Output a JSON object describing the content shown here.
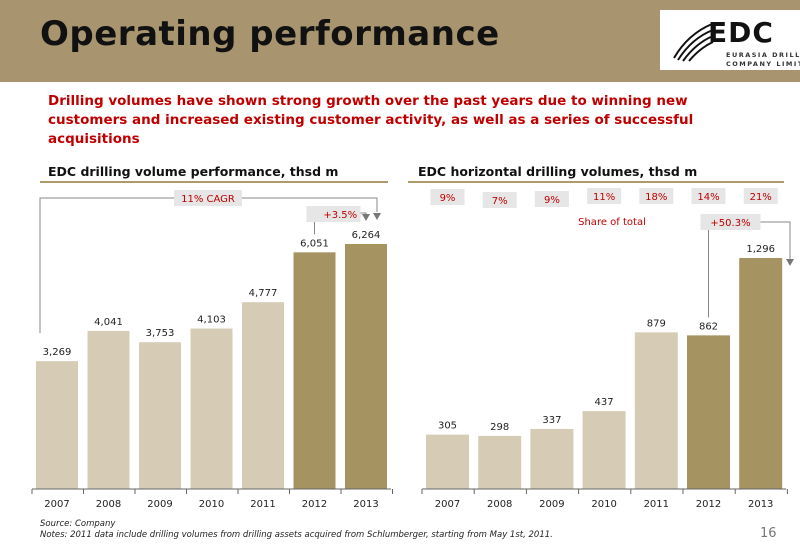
{
  "header": {
    "title": "Operating performance",
    "logo": {
      "name": "EDC",
      "line1": "EURASIA DRILLING",
      "line2": "COMPANY LIMITED",
      "icon": "swoosh-logo-icon"
    }
  },
  "subtitle": "Drilling volumes have shown strong growth over the past years due to winning new customers and increased existing customer activity, as well as a series of successful acquisitions",
  "colors": {
    "header_bg": "#a89570",
    "bar_light": "#d6ccb5",
    "bar_dark": "#a59361",
    "accent_red": "#c00000",
    "badge_bg": "#e6e6e6",
    "rule": "#b09a6c"
  },
  "chart_data": [
    {
      "type": "bar",
      "title": "EDC drilling volume performance, thsd m",
      "categories": [
        "2007",
        "2008",
        "2009",
        "2010",
        "2011",
        "2012",
        "2013"
      ],
      "values": [
        3269,
        4041,
        3753,
        4103,
        4777,
        6051,
        6264
      ],
      "value_labels": [
        "3,269",
        "4,041",
        "3,753",
        "4,103",
        "4,777",
        "6,051",
        "6,264"
      ],
      "highlighted": [
        false,
        false,
        false,
        false,
        false,
        true,
        true
      ],
      "annotations": [
        {
          "text": "11% CAGR",
          "from": "2007",
          "to": "2013"
        },
        {
          "text": "+3.5%",
          "from": "2012",
          "to": "2013"
        }
      ]
    },
    {
      "type": "bar",
      "title": "EDC horizontal drilling volumes, thsd m",
      "categories": [
        "2007",
        "2008",
        "2009",
        "2010",
        "2011",
        "2012",
        "2013"
      ],
      "values": [
        305,
        298,
        337,
        437,
        879,
        862,
        1296
      ],
      "value_labels": [
        "305",
        "298",
        "337",
        "437",
        "879",
        "862",
        "1,296"
      ],
      "highlighted": [
        false,
        false,
        false,
        false,
        false,
        true,
        true
      ],
      "share_of_total": [
        "9%",
        "7%",
        "9%",
        "11%",
        "18%",
        "14%",
        "21%"
      ],
      "share_label": "Share of total",
      "annotations": [
        {
          "text": "+50.3%",
          "from": "2012",
          "to": "2013"
        }
      ]
    }
  ],
  "footer": {
    "source": "Source: Company",
    "notes": "Notes: 2011 data include drilling volumes from drilling assets acquired from Schlumberger, starting from May 1st, 2011.",
    "page": "16"
  }
}
